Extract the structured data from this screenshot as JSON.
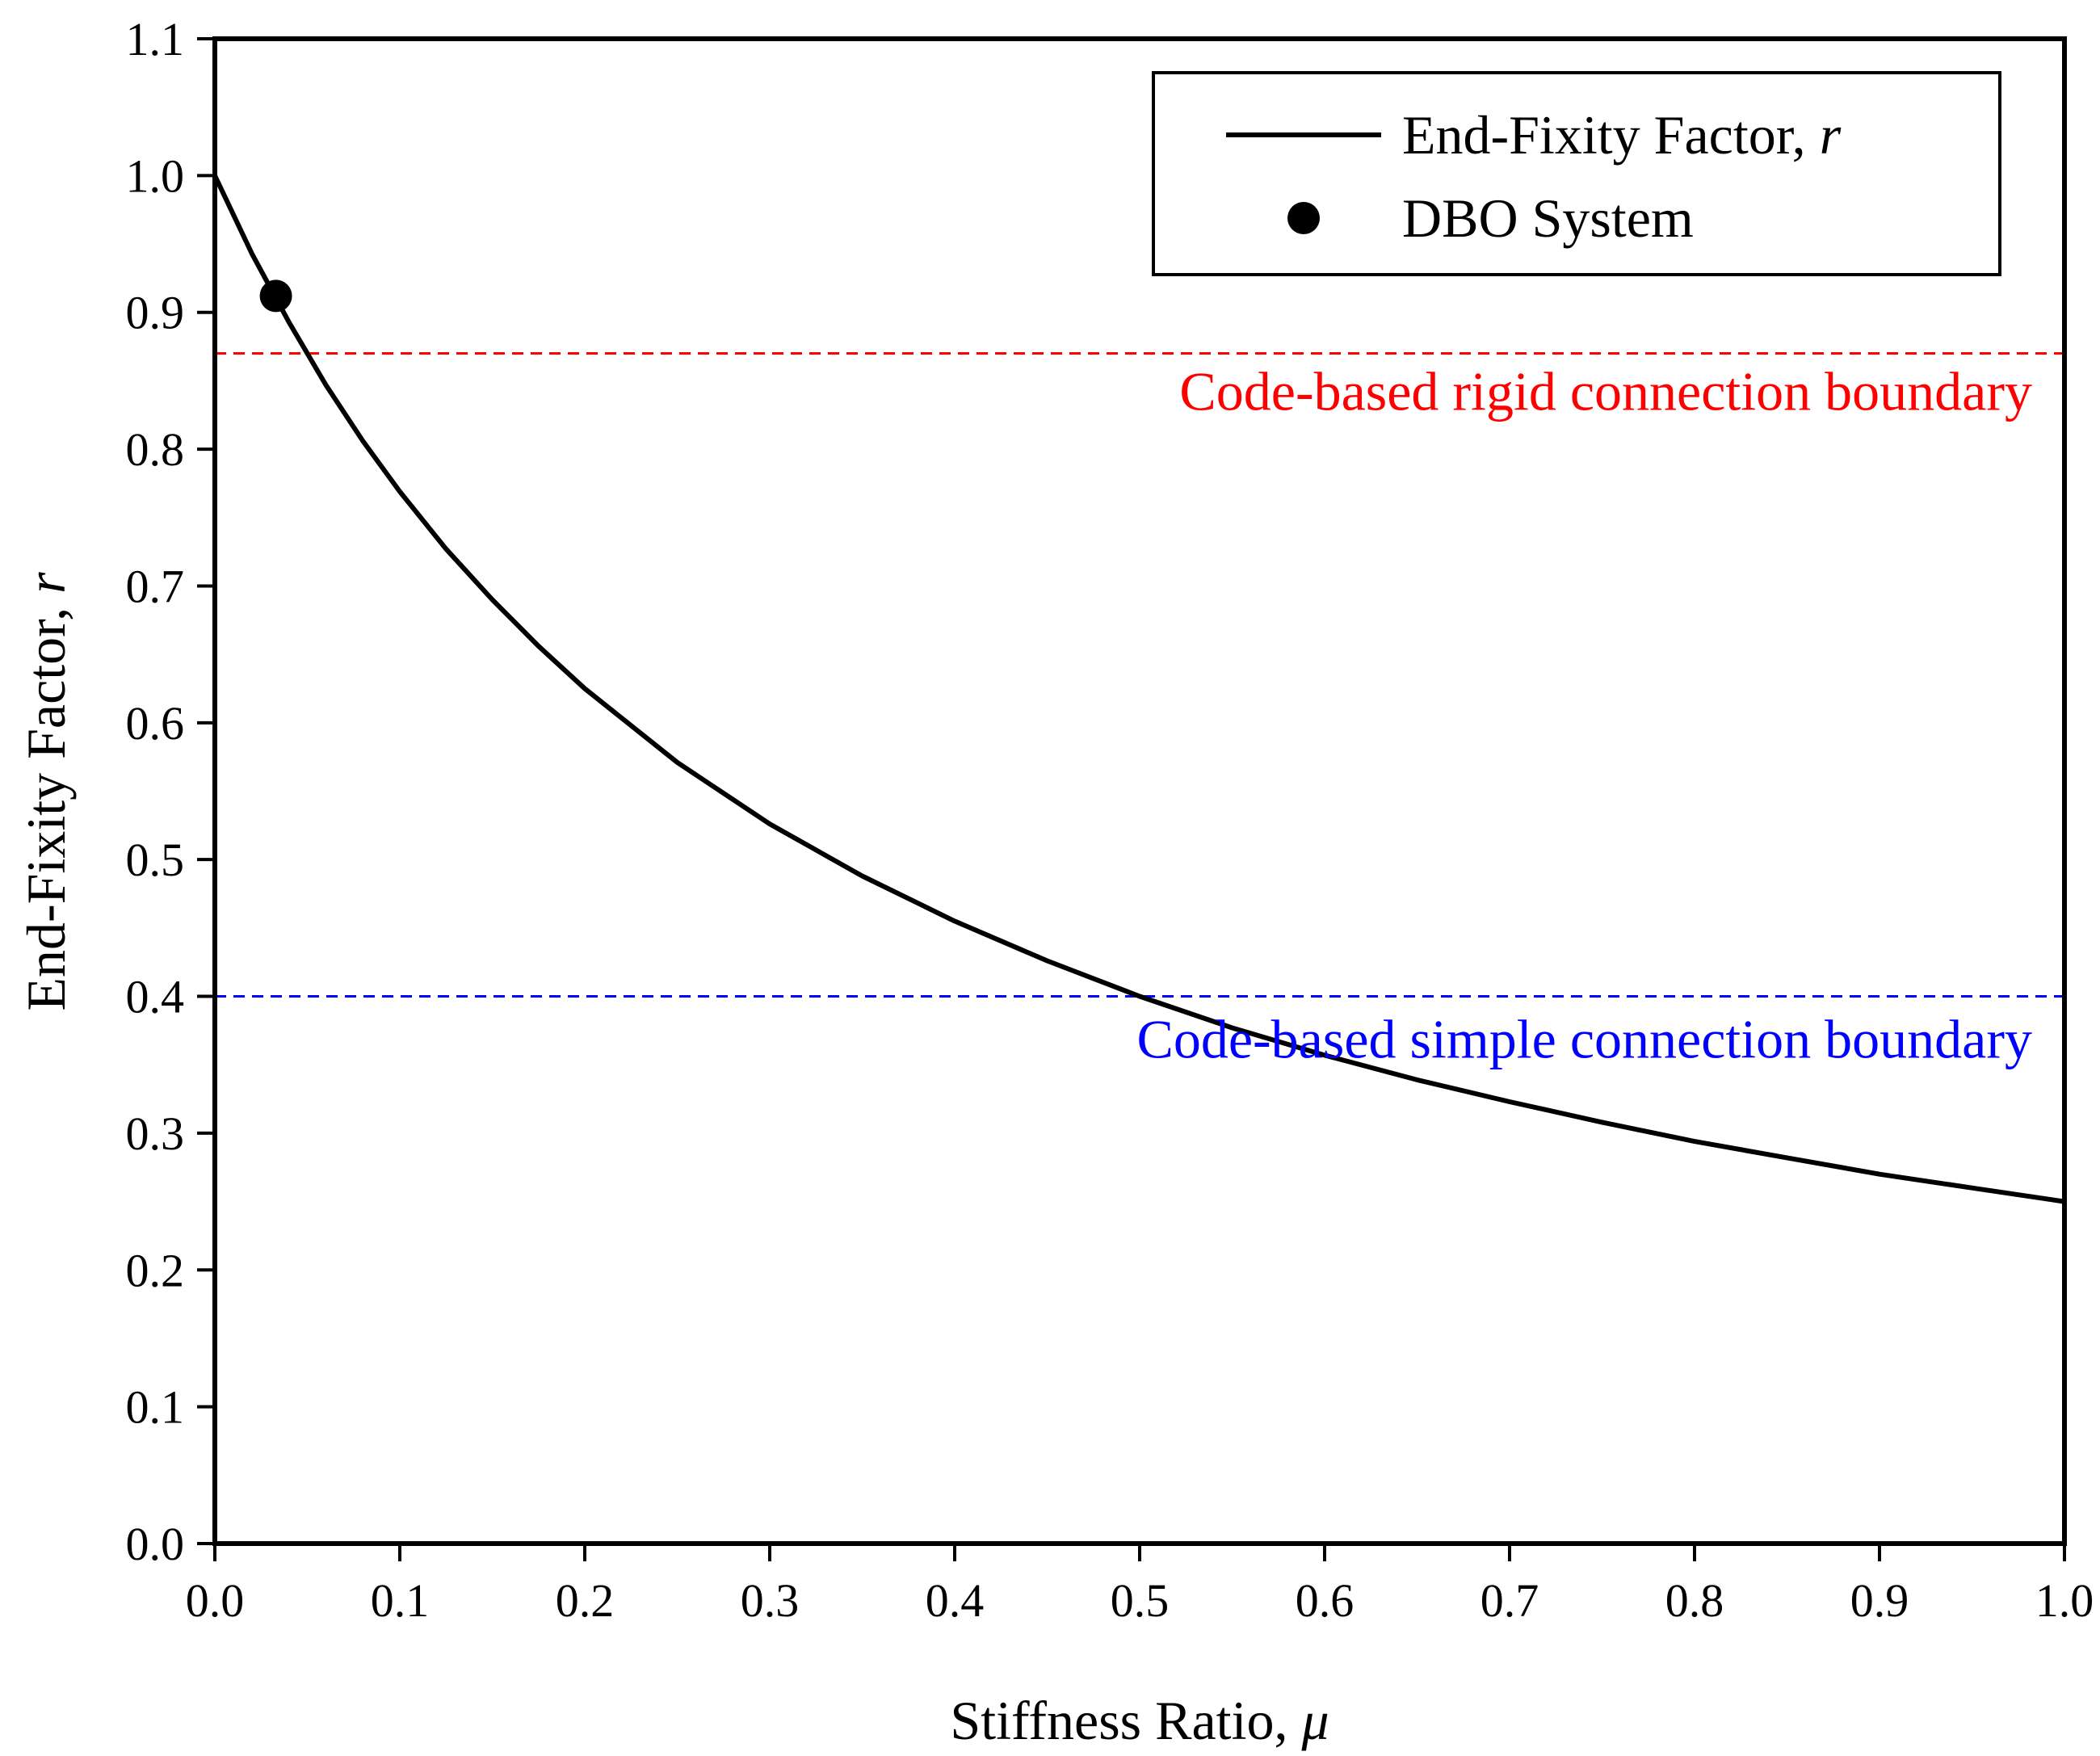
{
  "chart_data": {
    "type": "line",
    "title": "",
    "xlabel": {
      "text": "Stiffness Ratio, ",
      "symbol": "μ"
    },
    "ylabel": {
      "text": "End-Fixity Factor, ",
      "symbol": "r"
    },
    "xlim": [
      0.0,
      1.0
    ],
    "ylim": [
      0.0,
      1.1
    ],
    "xticks": [
      0.0,
      0.1,
      0.2,
      0.3,
      0.4,
      0.5,
      0.6,
      0.7,
      0.8,
      0.9,
      1.0
    ],
    "yticks": [
      0.0,
      0.1,
      0.2,
      0.3,
      0.4,
      0.5,
      0.6,
      0.7,
      0.8,
      0.9,
      1.0,
      1.1
    ],
    "xtick_labels": [
      "0.0",
      "0.1",
      "0.2",
      "0.3",
      "0.4",
      "0.5",
      "0.6",
      "0.7",
      "0.8",
      "0.9",
      "1.0"
    ],
    "ytick_labels": [
      "0.0",
      "0.1",
      "0.2",
      "0.3",
      "0.4",
      "0.5",
      "0.6",
      "0.7",
      "0.8",
      "0.9",
      "1.0",
      "1.1"
    ],
    "grid": false,
    "legend_position": "top-right",
    "series": [
      {
        "name": "End-Fixity Factor, ",
        "name_symbol": "r",
        "kind": "line",
        "color": "#000000",
        "x": [
          0.0,
          0.02,
          0.04,
          0.06,
          0.08,
          0.1,
          0.125,
          0.15,
          0.175,
          0.2,
          0.25,
          0.3,
          0.35,
          0.4,
          0.45,
          0.5,
          0.55,
          0.6,
          0.65,
          0.7,
          0.75,
          0.8,
          0.85,
          0.9,
          0.95,
          1.0
        ],
        "y": [
          1.0,
          0.943,
          0.893,
          0.847,
          0.806,
          0.769,
          0.727,
          0.69,
          0.656,
          0.625,
          0.571,
          0.526,
          0.488,
          0.455,
          0.426,
          0.4,
          0.377,
          0.357,
          0.339,
          0.323,
          0.308,
          0.294,
          0.282,
          0.27,
          0.26,
          0.25
        ]
      },
      {
        "name": "DBO System",
        "kind": "scatter",
        "color": "#000000",
        "x": [
          0.033
        ],
        "y": [
          0.912
        ]
      }
    ],
    "reference_lines": [
      {
        "y": 0.87,
        "color": "#ff0000",
        "style": "dashed",
        "label": "Code-based rigid connection boundary"
      },
      {
        "y": 0.4,
        "color": "#0000ff",
        "style": "dashed",
        "label": "Code-based simple connection boundary"
      }
    ]
  }
}
